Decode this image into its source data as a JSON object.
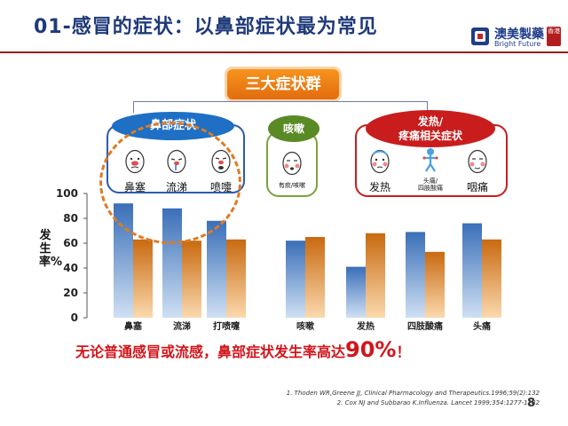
{
  "header": {
    "title": "01-感冒的症状：以鼻部症状最为常见",
    "logo_cn": "澳美製藥",
    "logo_en": "Bright Future",
    "logo_seal": "香港"
  },
  "groups": {
    "title": "三大症状群",
    "nasal": {
      "label": "鼻部症状",
      "symptoms": [
        {
          "label": "鼻塞",
          "icon": "nose-stuffy-face-icon"
        },
        {
          "label": "流涕",
          "icon": "runny-nose-face-icon"
        },
        {
          "label": "喷嚏",
          "icon": "sneeze-face-icon"
        }
      ]
    },
    "cough": {
      "label": "咳嗽",
      "symptoms": [
        {
          "label": "有痰/咳嗽",
          "icon": "cough-face-icon"
        }
      ]
    },
    "fever": {
      "label_line1": "发热/",
      "label_line2": "疼痛相关症状",
      "symptoms": [
        {
          "label": "发热",
          "icon": "fever-face-icon"
        },
        {
          "label": "头痛/\n四肢酸痛",
          "icon": "body-ache-figure-icon"
        },
        {
          "label": "咽痛",
          "icon": "sore-throat-face-icon"
        }
      ]
    }
  },
  "chart_data": {
    "type": "bar",
    "ylabel": "发生率%",
    "ylim": [
      0,
      100
    ],
    "yticks": [
      0,
      20,
      40,
      60,
      80,
      100
    ],
    "grid": false,
    "categories": [
      "鼻塞",
      "流涕",
      "打喷嚏",
      "咳嗽",
      "发热",
      "四肢酸痛",
      "头痛"
    ],
    "series": [
      {
        "values": [
          92,
          88,
          78,
          62,
          41,
          69,
          76
        ],
        "color": "#5b8fd0"
      },
      {
        "values": [
          63,
          62,
          63,
          65,
          68,
          53,
          63
        ],
        "color": "#e8861f"
      }
    ]
  },
  "conclusion": {
    "text": "无论普通感冒或流感，鼻部症状发生率高达",
    "emphasis": "90%",
    "tail": "！"
  },
  "references": [
    "1. Thoden WR,Greene JJ, Clinical Pharmacology and Therapeutics.1996;59(2):132",
    "2. Cox NJ and Subbarao K.Influenza. Lancet 1999;354:1277-1282"
  ],
  "page_number": "8"
}
